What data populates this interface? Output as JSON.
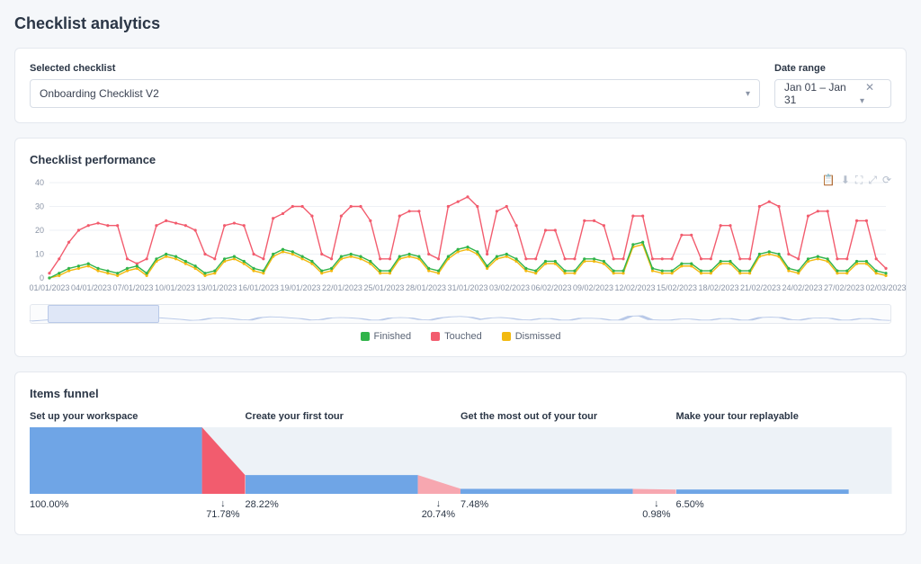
{
  "page_title": "Checklist analytics",
  "filters": {
    "checklist_label": "Selected checklist",
    "checklist_value": "Onboarding Checklist V2",
    "daterange_label": "Date range",
    "daterange_value": "Jan 01 – Jan 31"
  },
  "performance": {
    "title": "Checklist performance",
    "ylim": [
      0,
      40
    ],
    "ytick_step": 10,
    "yticks": [
      0,
      10,
      20,
      30,
      40
    ],
    "x_labels": [
      "01/01/2023",
      "04/01/2023",
      "07/01/2023",
      "10/01/2023",
      "13/01/2023",
      "16/01/2023",
      "19/01/2023",
      "22/01/2023",
      "25/01/2023",
      "28/01/2023",
      "31/01/2023",
      "03/02/2023",
      "06/02/2023",
      "09/02/2023",
      "12/02/2023",
      "15/02/2023",
      "18/02/2023",
      "21/02/2023",
      "24/02/2023",
      "27/02/2023",
      "02/03/2023"
    ],
    "background_color": "#ffffff",
    "grid_color": "#eef1f5",
    "marker_radius": 1.6,
    "line_width": 1.4,
    "series": {
      "touched": {
        "label": "Touched",
        "color": "#f25c6e",
        "data": [
          2,
          8,
          15,
          20,
          22,
          23,
          22,
          22,
          8,
          6,
          8,
          22,
          24,
          23,
          22,
          20,
          10,
          8,
          22,
          23,
          22,
          10,
          8,
          25,
          27,
          30,
          30,
          26,
          10,
          8,
          26,
          30,
          30,
          24,
          8,
          8,
          26,
          28,
          28,
          10,
          8,
          30,
          32,
          34,
          30,
          10,
          28,
          30,
          22,
          8,
          8,
          20,
          20,
          8,
          8,
          24,
          24,
          22,
          8,
          8,
          26,
          26,
          8,
          8,
          8,
          18,
          18,
          8,
          8,
          22,
          22,
          8,
          8,
          30,
          32,
          30,
          10,
          8,
          26,
          28,
          28,
          8,
          8,
          24,
          24,
          8,
          4
        ]
      },
      "finished": {
        "label": "Finished",
        "color": "#30b44a",
        "data": [
          0,
          2,
          4,
          5,
          6,
          4,
          3,
          2,
          4,
          5,
          2,
          8,
          10,
          9,
          7,
          5,
          2,
          3,
          8,
          9,
          7,
          4,
          3,
          10,
          12,
          11,
          9,
          7,
          3,
          4,
          9,
          10,
          9,
          7,
          3,
          3,
          9,
          10,
          9,
          4,
          3,
          9,
          12,
          13,
          11,
          5,
          9,
          10,
          8,
          4,
          3,
          7,
          7,
          3,
          3,
          8,
          8,
          7,
          3,
          3,
          14,
          15,
          4,
          3,
          3,
          6,
          6,
          3,
          3,
          7,
          7,
          3,
          3,
          10,
          11,
          10,
          4,
          3,
          8,
          9,
          8,
          3,
          3,
          7,
          7,
          3,
          2
        ]
      },
      "dismissed": {
        "label": "Dismissed",
        "color": "#f2b90f",
        "data": [
          0,
          1,
          3,
          4,
          5,
          3,
          2,
          1,
          3,
          4,
          1,
          7,
          9,
          8,
          6,
          4,
          1,
          2,
          7,
          8,
          6,
          3,
          2,
          9,
          11,
          10,
          8,
          6,
          2,
          3,
          8,
          9,
          8,
          6,
          2,
          2,
          8,
          9,
          8,
          3,
          2,
          8,
          11,
          12,
          10,
          4,
          8,
          9,
          7,
          3,
          2,
          6,
          6,
          2,
          2,
          7,
          7,
          6,
          2,
          2,
          13,
          14,
          3,
          2,
          2,
          5,
          5,
          2,
          2,
          6,
          6,
          2,
          2,
          9,
          10,
          9,
          3,
          2,
          7,
          8,
          7,
          2,
          2,
          6,
          6,
          2,
          1
        ]
      }
    },
    "legend_order": [
      "finished",
      "touched",
      "dismissed"
    ]
  },
  "funnel": {
    "title": "Items funnel",
    "bar_color": "#6fa5e6",
    "drop_color": "#f25c6e",
    "drop_color_light": "#f7a7b0",
    "bg_color": "#edf2f7",
    "steps": [
      {
        "title": "Set up your workspace",
        "pct": "100.00%",
        "value": 1.0,
        "drop": "71.78%",
        "next": 0.2822
      },
      {
        "title": "Create your first tour",
        "pct": "28.22%",
        "value": 0.2822,
        "drop": "20.74%",
        "next": 0.0748
      },
      {
        "title": "Get the most out of your tour",
        "pct": "7.48%",
        "value": 0.0748,
        "drop": "0.98%",
        "next": 0.065
      },
      {
        "title": "Make your tour replayable",
        "pct": "6.50%",
        "value": 0.065,
        "drop": null,
        "next": null
      }
    ]
  },
  "icons": {
    "clipboard": "📋",
    "download": "⬇",
    "enlarge": "⛶",
    "exit": "⤢",
    "reset": "⟳",
    "chevron": "▾",
    "clear": "✕",
    "arrow_down": "↓"
  }
}
